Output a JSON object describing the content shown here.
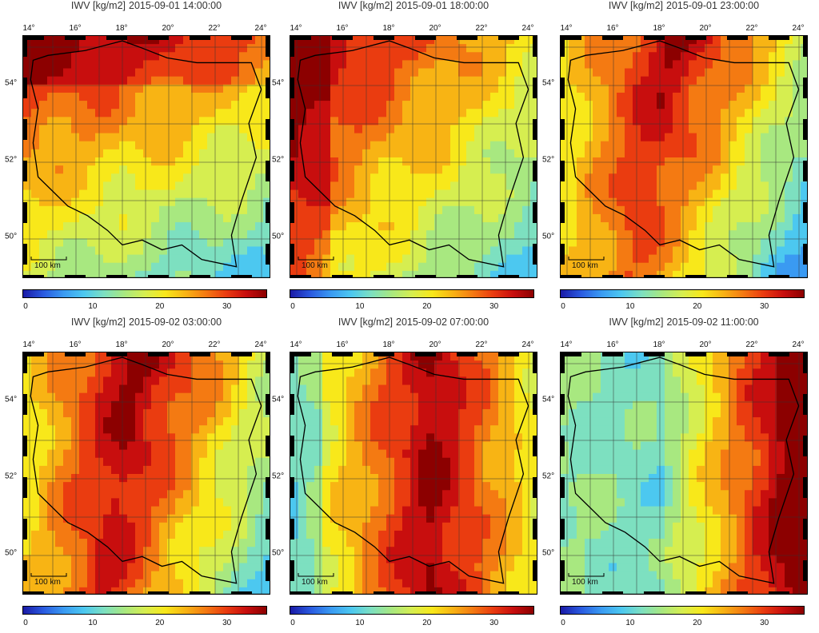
{
  "units": "IWV [kg/m2]",
  "panels": [
    {
      "time": "2015-09-01 14:00:00",
      "pattern": "west-moist"
    },
    {
      "time": "2015-09-01 18:00:00",
      "pattern": "west-moist-storm"
    },
    {
      "time": "2015-09-01 23:00:00",
      "pattern": "band-central"
    },
    {
      "time": "2015-09-02 03:00:00",
      "pattern": "band-east"
    },
    {
      "time": "2015-09-02 07:00:00",
      "pattern": "band-further-east"
    },
    {
      "time": "2015-09-02 11:00:00",
      "pattern": "east-moist"
    }
  ],
  "lon_labels": [
    "14°",
    "16°",
    "18°",
    "20°",
    "22°",
    "24°"
  ],
  "lat_labels": [
    "54°",
    "52°",
    "50°"
  ],
  "scale_label": "100 km",
  "colorbar": {
    "ticks": [
      "0",
      "10",
      "20",
      "30"
    ],
    "colors": [
      "#1a1aa6",
      "#2a5ae0",
      "#3a9af2",
      "#4cc8f0",
      "#7de0c0",
      "#a8e880",
      "#d6ee50",
      "#f8e81a",
      "#f8b414",
      "#f47a12",
      "#ea3c10",
      "#c80e0e",
      "#8c0000"
    ]
  }
}
